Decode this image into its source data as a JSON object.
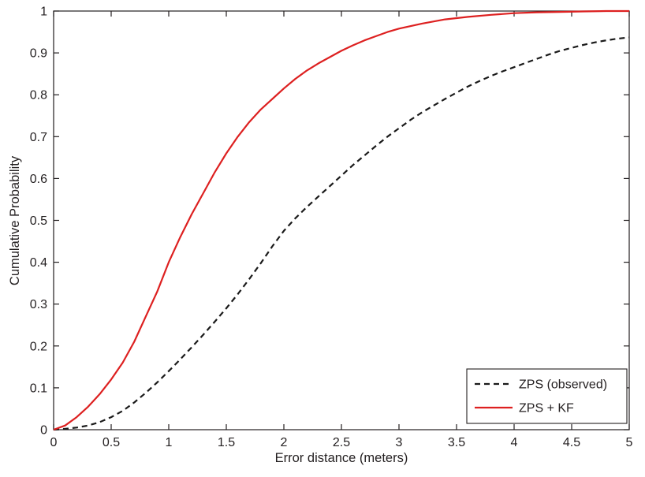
{
  "chart_data": {
    "type": "line",
    "title": "",
    "xlabel": "Error distance (meters)",
    "ylabel": "Cumulative Probability",
    "xlim": [
      0,
      5
    ],
    "ylim": [
      0,
      1
    ],
    "grid": false,
    "legend_position": "bottom-right",
    "axis_color": "#231f20",
    "background_color": "#ffffff",
    "x_ticks": [
      0,
      0.5,
      1,
      1.5,
      2,
      2.5,
      3,
      3.5,
      4,
      4.5,
      5
    ],
    "x_tick_labels": [
      "0",
      "0.5",
      "1",
      "1.5",
      "2",
      "2.5",
      "3",
      "3.5",
      "4",
      "4.5",
      "5"
    ],
    "y_ticks": [
      0,
      0.1,
      0.2,
      0.3,
      0.4,
      0.5,
      0.6,
      0.7,
      0.8,
      0.9,
      1
    ],
    "y_tick_labels": [
      "0",
      "0.1",
      "0.2",
      "0.3",
      "0.4",
      "0.5",
      "0.6",
      "0.7",
      "0.8",
      "0.9",
      "1"
    ],
    "series": [
      {
        "name": "ZPS (observed)",
        "color": "#1a1a1a",
        "style": "dashed",
        "width": 2.2,
        "x": [
          0,
          0.1,
          0.2,
          0.3,
          0.4,
          0.5,
          0.6,
          0.7,
          0.8,
          0.9,
          1.0,
          1.1,
          1.2,
          1.3,
          1.4,
          1.5,
          1.6,
          1.7,
          1.8,
          1.9,
          2.0,
          2.1,
          2.2,
          2.3,
          2.4,
          2.5,
          2.6,
          2.7,
          2.8,
          2.9,
          3.0,
          3.1,
          3.2,
          3.3,
          3.4,
          3.5,
          3.6,
          3.7,
          3.8,
          3.9,
          4.0,
          4.1,
          4.2,
          4.3,
          4.4,
          4.5,
          4.6,
          4.7,
          4.8,
          4.9,
          5.0
        ],
        "y": [
          0,
          0.002,
          0.005,
          0.01,
          0.018,
          0.03,
          0.045,
          0.065,
          0.088,
          0.113,
          0.14,
          0.168,
          0.197,
          0.227,
          0.258,
          0.29,
          0.324,
          0.36,
          0.398,
          0.438,
          0.475,
          0.505,
          0.532,
          0.557,
          0.582,
          0.607,
          0.632,
          0.655,
          0.678,
          0.7,
          0.72,
          0.74,
          0.758,
          0.774,
          0.79,
          0.805,
          0.82,
          0.833,
          0.845,
          0.856,
          0.866,
          0.876,
          0.886,
          0.896,
          0.905,
          0.912,
          0.919,
          0.925,
          0.93,
          0.934,
          0.937
        ]
      },
      {
        "name": "ZPS + KF",
        "color": "#dd2020",
        "style": "solid",
        "width": 2.2,
        "x": [
          0,
          0.1,
          0.2,
          0.3,
          0.4,
          0.5,
          0.6,
          0.7,
          0.8,
          0.9,
          1.0,
          1.1,
          1.2,
          1.3,
          1.4,
          1.5,
          1.6,
          1.7,
          1.8,
          1.9,
          2.0,
          2.1,
          2.2,
          2.3,
          2.4,
          2.5,
          2.6,
          2.7,
          2.8,
          2.9,
          3.0,
          3.2,
          3.4,
          3.6,
          3.8,
          4.0,
          4.2,
          4.4,
          4.6,
          4.8,
          5.0
        ],
        "y": [
          0,
          0.01,
          0.03,
          0.055,
          0.085,
          0.12,
          0.16,
          0.21,
          0.27,
          0.33,
          0.4,
          0.46,
          0.515,
          0.565,
          0.615,
          0.66,
          0.7,
          0.735,
          0.765,
          0.79,
          0.815,
          0.838,
          0.858,
          0.875,
          0.89,
          0.905,
          0.918,
          0.93,
          0.94,
          0.95,
          0.958,
          0.97,
          0.98,
          0.986,
          0.991,
          0.995,
          0.997,
          0.998,
          0.999,
          1.0,
          1.0
        ]
      }
    ]
  }
}
